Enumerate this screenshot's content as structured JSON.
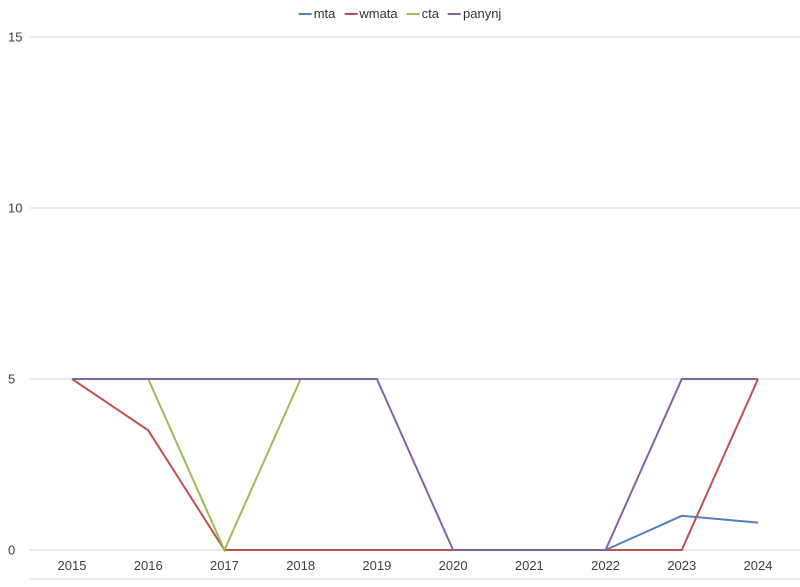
{
  "chart_data": {
    "type": "line",
    "x": [
      "2015",
      "2016",
      "2017",
      "2018",
      "2019",
      "2020",
      "2021",
      "2022",
      "2023",
      "2024"
    ],
    "series": [
      {
        "name": "mta",
        "color": "#4F81BD",
        "values": [
          null,
          null,
          null,
          null,
          null,
          null,
          null,
          0,
          1,
          0.8
        ]
      },
      {
        "name": "wmata",
        "color": "#C0504D",
        "values": [
          5,
          3.5,
          0,
          0,
          0,
          0,
          0,
          0,
          0,
          5
        ]
      },
      {
        "name": "cta",
        "color": "#9BBB59",
        "values": [
          null,
          5,
          0,
          5,
          null,
          null,
          null,
          null,
          null,
          null
        ]
      },
      {
        "name": "panynj",
        "color": "#8064A2",
        "values": [
          5,
          5,
          5,
          5,
          5,
          0,
          0,
          0,
          5,
          5
        ]
      }
    ],
    "title": "",
    "xlabel": "",
    "ylabel": "",
    "yticks": [
      0,
      5,
      10,
      15
    ],
    "ylim": [
      0,
      16
    ],
    "grid": true,
    "legend_position": "top-center"
  },
  "legend": {
    "items": [
      "mta",
      "wmata",
      "cta",
      "panynj"
    ]
  },
  "colors": {
    "grid": "#D9D9D9",
    "baseline": "#D9D9D9",
    "axis_text": "#404040",
    "legend_text": "#333333",
    "background": "#FFFFFF"
  }
}
